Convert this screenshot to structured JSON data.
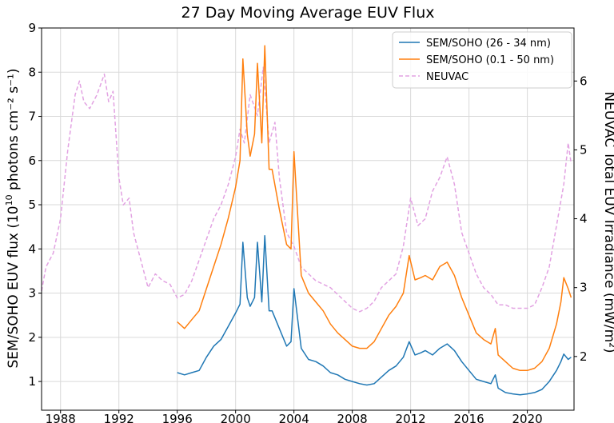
{
  "chart_data": {
    "type": "line",
    "title": "27 Day Moving Average EUV Flux",
    "ylabel_left_prefix": "SEM/SOHO EUV flux (10",
    "ylabel_left_exp": "10",
    "ylabel_left_suffix": " photons cm⁻² s⁻¹)",
    "ylabel_right": "NEUVAC Total EUV Irradiance (mW/m²)",
    "xlim": [
      1986.7,
      2023.2
    ],
    "ylim_left": [
      0.35,
      9.0
    ],
    "ylim_right": [
      1.22,
      6.77
    ],
    "x_ticks": [
      1988,
      1992,
      1996,
      2000,
      2004,
      2008,
      2012,
      2016,
      2020
    ],
    "x_tick_labels": [
      "1988",
      "1992",
      "1996",
      "2000",
      "2004",
      "2008",
      "2012",
      "2016",
      "2020"
    ],
    "y_left_ticks": [
      1,
      2,
      3,
      4,
      5,
      6,
      7,
      8,
      9
    ],
    "y_left_tick_labels": [
      "1",
      "2",
      "3",
      "4",
      "5",
      "6",
      "7",
      "8",
      "9"
    ],
    "y_right_ticks": [
      2,
      3,
      4,
      5,
      6
    ],
    "y_right_tick_labels": [
      "2",
      "3",
      "4",
      "5",
      "6"
    ],
    "grid": true,
    "legend_position": "top-right",
    "series": [
      {
        "name": "SEM/SOHO (26 - 34 nm)",
        "color": "#1f77b4",
        "dash": "solid",
        "axis": "left",
        "x": [
          1996.0,
          1996.5,
          1997.0,
          1997.5,
          1998.0,
          1998.5,
          1999.0,
          1999.5,
          2000.0,
          2000.3,
          2000.5,
          2000.8,
          2001.0,
          2001.3,
          2001.5,
          2001.8,
          2002.0,
          2002.3,
          2002.5,
          2003.0,
          2003.5,
          2003.8,
          2004.0,
          2004.5,
          2005.0,
          2005.5,
          2006.0,
          2006.5,
          2007.0,
          2007.5,
          2008.0,
          2008.5,
          2009.0,
          2009.5,
          2010.0,
          2010.5,
          2011.0,
          2011.5,
          2011.9,
          2012.3,
          2012.7,
          2013.0,
          2013.5,
          2014.0,
          2014.5,
          2015.0,
          2015.5,
          2016.0,
          2016.5,
          2017.0,
          2017.5,
          2017.8,
          2018.0,
          2018.5,
          2019.0,
          2019.5,
          2020.0,
          2020.5,
          2021.0,
          2021.5,
          2022.0,
          2022.3,
          2022.5,
          2022.8,
          2023.0
        ],
        "y": [
          1.2,
          1.15,
          1.2,
          1.25,
          1.55,
          1.8,
          1.95,
          2.25,
          2.55,
          2.75,
          4.15,
          2.9,
          2.7,
          2.9,
          4.15,
          2.8,
          4.3,
          2.6,
          2.6,
          2.2,
          1.8,
          1.9,
          3.1,
          1.75,
          1.5,
          1.45,
          1.35,
          1.2,
          1.15,
          1.05,
          1.0,
          0.95,
          0.92,
          0.95,
          1.1,
          1.25,
          1.35,
          1.55,
          1.9,
          1.6,
          1.65,
          1.7,
          1.6,
          1.75,
          1.85,
          1.7,
          1.45,
          1.25,
          1.05,
          1.0,
          0.95,
          1.15,
          0.85,
          0.75,
          0.72,
          0.7,
          0.72,
          0.75,
          0.82,
          1.0,
          1.25,
          1.45,
          1.62,
          1.5,
          1.55
        ]
      },
      {
        "name": "SEM/SOHO (0.1 - 50 nm)",
        "color": "#ff7f0e",
        "dash": "solid",
        "axis": "left",
        "x": [
          1996.0,
          1996.5,
          1997.0,
          1997.5,
          1998.0,
          1998.5,
          1999.0,
          1999.5,
          2000.0,
          2000.3,
          2000.5,
          2000.8,
          2001.0,
          2001.3,
          2001.5,
          2001.8,
          2002.0,
          2002.3,
          2002.5,
          2003.0,
          2003.5,
          2003.8,
          2004.0,
          2004.5,
          2005.0,
          2005.5,
          2006.0,
          2006.5,
          2007.0,
          2007.5,
          2008.0,
          2008.5,
          2009.0,
          2009.5,
          2010.0,
          2010.5,
          2011.0,
          2011.5,
          2011.9,
          2012.3,
          2012.7,
          2013.0,
          2013.5,
          2014.0,
          2014.5,
          2015.0,
          2015.5,
          2016.0,
          2016.5,
          2017.0,
          2017.5,
          2017.8,
          2018.0,
          2018.5,
          2019.0,
          2019.5,
          2020.0,
          2020.5,
          2021.0,
          2021.5,
          2022.0,
          2022.3,
          2022.5,
          2022.8,
          2023.0
        ],
        "y": [
          2.35,
          2.2,
          2.4,
          2.6,
          3.1,
          3.6,
          4.1,
          4.7,
          5.4,
          6.0,
          8.3,
          6.6,
          6.1,
          6.6,
          8.2,
          6.4,
          8.6,
          5.8,
          5.8,
          4.9,
          4.1,
          4.0,
          6.2,
          3.4,
          3.0,
          2.8,
          2.6,
          2.3,
          2.1,
          1.95,
          1.8,
          1.75,
          1.75,
          1.9,
          2.2,
          2.5,
          2.7,
          3.0,
          3.85,
          3.3,
          3.35,
          3.4,
          3.3,
          3.6,
          3.7,
          3.4,
          2.9,
          2.5,
          2.1,
          1.95,
          1.85,
          2.2,
          1.6,
          1.45,
          1.3,
          1.25,
          1.25,
          1.3,
          1.45,
          1.75,
          2.3,
          2.8,
          3.35,
          3.1,
          2.9
        ]
      },
      {
        "name": "NEUVAC",
        "color": "#e2a2e2",
        "dash": "dashed",
        "axis": "right",
        "x": [
          1986.7,
          1987.0,
          1987.5,
          1988.0,
          1988.5,
          1989.0,
          1989.3,
          1989.6,
          1990.0,
          1990.5,
          1991.0,
          1991.3,
          1991.6,
          1992.0,
          1992.3,
          1992.7,
          1993.0,
          1993.5,
          1994.0,
          1994.5,
          1995.0,
          1995.5,
          1996.0,
          1996.5,
          1997.0,
          1997.5,
          1998.0,
          1998.5,
          1999.0,
          1999.5,
          2000.0,
          2000.3,
          2000.6,
          2001.0,
          2001.5,
          2001.9,
          2002.3,
          2002.7,
          2003.0,
          2003.5,
          2004.0,
          2004.5,
          2005.0,
          2005.5,
          2006.0,
          2006.5,
          2007.0,
          2007.5,
          2008.0,
          2008.5,
          2009.0,
          2009.5,
          2010.0,
          2010.5,
          2011.0,
          2011.5,
          2012.0,
          2012.5,
          2013.0,
          2013.5,
          2014.0,
          2014.5,
          2015.0,
          2015.5,
          2016.0,
          2016.5,
          2017.0,
          2017.5,
          2018.0,
          2018.5,
          2019.0,
          2019.5,
          2020.0,
          2020.5,
          2021.0,
          2021.5,
          2022.0,
          2022.5,
          2022.8,
          2023.0
        ],
        "y": [
          2.95,
          3.3,
          3.5,
          4.0,
          5.0,
          5.8,
          6.0,
          5.7,
          5.6,
          5.8,
          6.1,
          5.7,
          5.85,
          4.6,
          4.2,
          4.3,
          3.8,
          3.4,
          3.0,
          3.2,
          3.1,
          3.05,
          2.85,
          2.9,
          3.1,
          3.4,
          3.7,
          4.0,
          4.2,
          4.5,
          4.9,
          5.3,
          5.1,
          5.8,
          5.5,
          6.2,
          5.1,
          5.4,
          4.6,
          3.8,
          3.6,
          3.3,
          3.2,
          3.1,
          3.05,
          3.0,
          2.9,
          2.8,
          2.7,
          2.65,
          2.7,
          2.8,
          3.0,
          3.1,
          3.2,
          3.6,
          4.3,
          3.9,
          4.0,
          4.4,
          4.6,
          4.9,
          4.5,
          3.8,
          3.5,
          3.2,
          3.0,
          2.9,
          2.75,
          2.75,
          2.7,
          2.7,
          2.7,
          2.75,
          3.0,
          3.3,
          3.9,
          4.5,
          5.1,
          4.8
        ]
      }
    ]
  }
}
